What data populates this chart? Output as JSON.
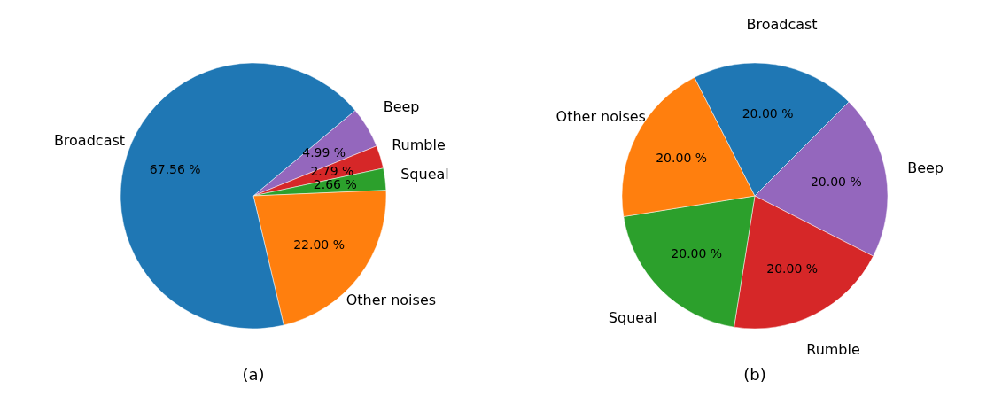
{
  "chart_data": [
    {
      "type": "pie",
      "title": "(a)",
      "categories": [
        "Beep",
        "Rumble",
        "Squeal",
        "Other noises",
        "Broadcast"
      ],
      "values": [
        4.99,
        2.79,
        2.66,
        22.0,
        67.56
      ],
      "colors": [
        "#9467bd",
        "#d62728",
        "#2ca02c",
        "#ff7f0e",
        "#1f77b4"
      ],
      "value_labels": [
        "4.99 %",
        "2.79 %",
        "2.66 %",
        "22.00 %",
        "67.56 %"
      ]
    },
    {
      "type": "pie",
      "title": "(b)",
      "categories": [
        "Beep",
        "Rumble",
        "Squeal",
        "Other noises",
        "Broadcast"
      ],
      "values": [
        20,
        20,
        20,
        20,
        20
      ],
      "colors": [
        "#9467bd",
        "#d62728",
        "#2ca02c",
        "#ff7f0e",
        "#1f77b4"
      ],
      "value_labels": [
        "20.00 %",
        "20.00 %",
        "20.00 %",
        "20.00 %",
        "20.00 %"
      ]
    }
  ]
}
